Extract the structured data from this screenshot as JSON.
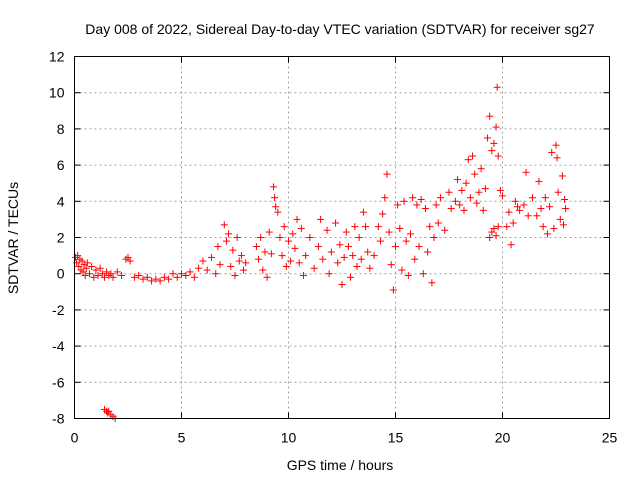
{
  "chart_data": {
    "type": "scatter",
    "title": "Day 008 of 2022, Sidereal Day-to-day VTEC variation (SDTVAR) for receiver sg27",
    "xlabel": "GPS time / hours",
    "ylabel": "SDTVAR / TECUs",
    "xlim": [
      0,
      25
    ],
    "ylim": [
      -8,
      12
    ],
    "xticks": [
      0,
      5,
      10,
      15,
      20,
      25
    ],
    "yticks": [
      -8,
      -6,
      -4,
      -2,
      0,
      2,
      4,
      6,
      8,
      10,
      12
    ],
    "grid": true,
    "marker": "+",
    "colors": {
      "points": "#ff0000",
      "axis": "#000000",
      "grid": "#a0a0a0"
    },
    "series": [
      {
        "name": "sg27",
        "points": [
          [
            0.05,
            0.9
          ],
          [
            0.1,
            0.6
          ],
          [
            0.15,
            1.0
          ],
          [
            0.2,
            0.4
          ],
          [
            0.25,
            0.8
          ],
          [
            0.3,
            0.2
          ],
          [
            0.35,
            0.7
          ],
          [
            0.4,
            0.1
          ],
          [
            0.45,
            0.5
          ],
          [
            0.5,
            -0.1
          ],
          [
            0.55,
            0.3
          ],
          [
            0.6,
            0.6
          ],
          [
            0.7,
            0.0
          ],
          [
            0.8,
            0.4
          ],
          [
            0.9,
            -0.2
          ],
          [
            1.0,
            0.2
          ],
          [
            1.1,
            -0.1
          ],
          [
            1.2,
            0.3
          ],
          [
            1.3,
            0.0
          ],
          [
            1.4,
            -0.2
          ],
          [
            1.5,
            0.1
          ],
          [
            1.6,
            -0.1
          ],
          [
            1.7,
            0.0
          ],
          [
            1.8,
            -0.2
          ],
          [
            1.4,
            -7.5
          ],
          [
            1.5,
            -7.6
          ],
          [
            1.55,
            -7.7
          ],
          [
            1.6,
            -7.6
          ],
          [
            1.7,
            -7.8
          ],
          [
            1.8,
            -7.9
          ],
          [
            1.9,
            -8.0
          ],
          [
            2.0,
            0.1
          ],
          [
            2.2,
            -0.1
          ],
          [
            2.4,
            0.8
          ],
          [
            2.5,
            0.9
          ],
          [
            2.6,
            0.7
          ],
          [
            2.8,
            -0.2
          ],
          [
            3.0,
            -0.1
          ],
          [
            3.2,
            -0.3
          ],
          [
            3.4,
            -0.2
          ],
          [
            3.6,
            -0.4
          ],
          [
            3.8,
            -0.3
          ],
          [
            4.0,
            -0.4
          ],
          [
            4.2,
            -0.2
          ],
          [
            4.4,
            -0.3
          ],
          [
            4.6,
            0.0
          ],
          [
            4.8,
            -0.2
          ],
          [
            5.0,
            0.0
          ],
          [
            5.2,
            -0.1
          ],
          [
            5.4,
            0.1
          ],
          [
            5.6,
            -0.2
          ],
          [
            5.8,
            0.3
          ],
          [
            6.0,
            0.7
          ],
          [
            6.2,
            0.2
          ],
          [
            6.4,
            0.9
          ],
          [
            6.6,
            0.0
          ],
          [
            6.7,
            1.5
          ],
          [
            6.8,
            0.5
          ],
          [
            7.0,
            2.7
          ],
          [
            7.1,
            1.8
          ],
          [
            7.2,
            2.2
          ],
          [
            7.3,
            0.4
          ],
          [
            7.4,
            1.3
          ],
          [
            7.5,
            -0.1
          ],
          [
            7.6,
            2.0
          ],
          [
            7.7,
            0.7
          ],
          [
            7.8,
            1.0
          ],
          [
            7.9,
            0.2
          ],
          [
            8.0,
            0.6
          ],
          [
            8.5,
            1.5
          ],
          [
            8.6,
            0.8
          ],
          [
            8.7,
            2.0
          ],
          [
            8.8,
            0.2
          ],
          [
            8.9,
            1.2
          ],
          [
            9.0,
            -0.2
          ],
          [
            9.1,
            2.3
          ],
          [
            9.2,
            1.1
          ],
          [
            9.3,
            4.8
          ],
          [
            9.35,
            4.2
          ],
          [
            9.4,
            3.7
          ],
          [
            9.5,
            3.4
          ],
          [
            9.6,
            2.0
          ],
          [
            9.7,
            1.0
          ],
          [
            9.8,
            2.6
          ],
          [
            9.9,
            0.4
          ],
          [
            10.0,
            1.8
          ],
          [
            10.1,
            0.7
          ],
          [
            10.2,
            2.2
          ],
          [
            10.3,
            1.4
          ],
          [
            10.4,
            3.0
          ],
          [
            10.5,
            0.6
          ],
          [
            10.6,
            2.5
          ],
          [
            10.7,
            -0.1
          ],
          [
            10.8,
            1.0
          ],
          [
            11.0,
            2.0
          ],
          [
            11.2,
            0.3
          ],
          [
            11.4,
            1.5
          ],
          [
            11.5,
            3.0
          ],
          [
            11.6,
            0.8
          ],
          [
            11.8,
            2.4
          ],
          [
            11.9,
            0.0
          ],
          [
            12.0,
            1.2
          ],
          [
            12.2,
            2.8
          ],
          [
            12.3,
            0.6
          ],
          [
            12.4,
            1.6
          ],
          [
            12.5,
            -0.6
          ],
          [
            12.6,
            0.9
          ],
          [
            12.7,
            2.3
          ],
          [
            12.8,
            1.5
          ],
          [
            12.9,
            -0.2
          ],
          [
            13.0,
            1.0
          ],
          [
            13.1,
            2.6
          ],
          [
            13.2,
            0.4
          ],
          [
            13.3,
            2.0
          ],
          [
            13.4,
            0.8
          ],
          [
            13.5,
            3.4
          ],
          [
            13.6,
            2.6
          ],
          [
            13.7,
            1.2
          ],
          [
            13.8,
            0.3
          ],
          [
            14.0,
            1.0
          ],
          [
            14.2,
            2.6
          ],
          [
            14.3,
            1.8
          ],
          [
            14.4,
            3.3
          ],
          [
            14.5,
            4.2
          ],
          [
            14.6,
            5.5
          ],
          [
            14.7,
            2.3
          ],
          [
            14.8,
            0.5
          ],
          [
            14.9,
            -0.9
          ],
          [
            15.0,
            1.5
          ],
          [
            15.1,
            3.8
          ],
          [
            15.2,
            2.5
          ],
          [
            15.3,
            0.2
          ],
          [
            15.4,
            4.0
          ],
          [
            15.5,
            1.8
          ],
          [
            15.6,
            -0.1
          ],
          [
            15.7,
            2.2
          ],
          [
            15.8,
            4.2
          ],
          [
            15.9,
            0.8
          ],
          [
            16.0,
            3.8
          ],
          [
            16.1,
            1.5
          ],
          [
            16.2,
            4.1
          ],
          [
            16.3,
            0.0
          ],
          [
            16.4,
            3.6
          ],
          [
            16.5,
            1.2
          ],
          [
            16.6,
            2.6
          ],
          [
            16.7,
            -0.5
          ],
          [
            16.8,
            2.0
          ],
          [
            16.9,
            3.8
          ],
          [
            17.0,
            2.8
          ],
          [
            17.1,
            4.2
          ],
          [
            17.3,
            2.4
          ],
          [
            17.5,
            4.5
          ],
          [
            17.6,
            3.6
          ],
          [
            17.8,
            4.0
          ],
          [
            17.9,
            5.2
          ],
          [
            18.0,
            3.8
          ],
          [
            18.1,
            4.6
          ],
          [
            18.2,
            3.5
          ],
          [
            18.3,
            5.0
          ],
          [
            18.4,
            6.3
          ],
          [
            18.5,
            4.2
          ],
          [
            18.6,
            6.5
          ],
          [
            18.7,
            5.5
          ],
          [
            18.8,
            3.9
          ],
          [
            18.9,
            4.5
          ],
          [
            19.0,
            5.8
          ],
          [
            19.1,
            3.5
          ],
          [
            19.2,
            4.7
          ],
          [
            19.3,
            7.5
          ],
          [
            19.4,
            8.7
          ],
          [
            19.5,
            6.8
          ],
          [
            19.6,
            7.2
          ],
          [
            19.7,
            8.1
          ],
          [
            19.75,
            10.3
          ],
          [
            19.8,
            6.5
          ],
          [
            19.9,
            4.6
          ],
          [
            19.4,
            2.0
          ],
          [
            19.5,
            2.3
          ],
          [
            19.6,
            2.5
          ],
          [
            19.7,
            2.1
          ],
          [
            19.8,
            2.6
          ],
          [
            20.0,
            4.3
          ],
          [
            20.2,
            2.6
          ],
          [
            20.3,
            3.4
          ],
          [
            20.4,
            1.6
          ],
          [
            20.5,
            2.8
          ],
          [
            20.6,
            4.0
          ],
          [
            20.7,
            3.7
          ],
          [
            20.8,
            3.5
          ],
          [
            21.0,
            3.8
          ],
          [
            21.1,
            5.6
          ],
          [
            21.2,
            3.2
          ],
          [
            21.4,
            4.2
          ],
          [
            21.6,
            3.2
          ],
          [
            21.7,
            5.1
          ],
          [
            21.8,
            3.6
          ],
          [
            21.9,
            2.6
          ],
          [
            22.0,
            4.2
          ],
          [
            22.1,
            2.2
          ],
          [
            22.2,
            3.7
          ],
          [
            22.3,
            6.7
          ],
          [
            22.4,
            2.5
          ],
          [
            22.5,
            7.1
          ],
          [
            22.55,
            6.4
          ],
          [
            22.6,
            4.5
          ],
          [
            22.7,
            3.0
          ],
          [
            22.8,
            5.4
          ],
          [
            22.85,
            2.7
          ],
          [
            22.9,
            4.1
          ],
          [
            22.95,
            3.6
          ]
        ]
      }
    ]
  }
}
